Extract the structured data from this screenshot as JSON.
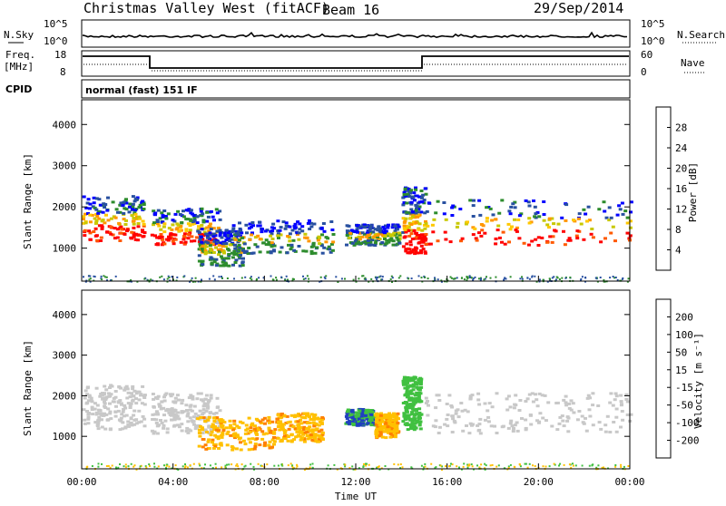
{
  "header": {
    "title": "Christmas Valley West (fitACF)",
    "beam": "Beam 16",
    "date": "29/Sep/2014"
  },
  "strip_nsky": {
    "left_label": "N.Sky",
    "right_label": "N.Search",
    "left_ticks": [
      "10^5",
      "10^0"
    ],
    "right_ticks": [
      "10^5",
      "10^0"
    ]
  },
  "strip_freq": {
    "left_label_1": "Freq.",
    "left_label_2": "[MHz]",
    "left_ticks": [
      "18",
      "8"
    ],
    "right_label": "Nave",
    "right_ticks": [
      "60",
      "0"
    ]
  },
  "cpid": {
    "label": "CPID",
    "mode_text": "normal (fast) 151 IF"
  },
  "power_colorbar": {
    "label": "Power [dB]",
    "ticks": [
      "28",
      "24",
      "20",
      "16",
      "12",
      "8",
      "4"
    ],
    "colors": [
      "#ff0000",
      "#ff5a00",
      "#ff9600",
      "#ffc800",
      "#c8c800",
      "#2d8c2d",
      "#2850a0",
      "#0000ff"
    ]
  },
  "velocity_colorbar": {
    "label": "Velocity [m s⁻¹]",
    "ticks": [
      "200",
      "100",
      "50",
      "15",
      "-15",
      "-50",
      "-100",
      "-200"
    ],
    "colors": [
      "#2040c0",
      "#207020",
      "#40c040",
      "#a0d060",
      "#c8c8c8",
      "#ffc000",
      "#ff8000",
      "#ff4000",
      "#ff0000"
    ]
  },
  "chart_data": [
    {
      "type": "heatmap",
      "name": "power",
      "xlabel": "",
      "ylabel": "Slant Range [km]",
      "ylim": [
        200,
        4600
      ],
      "xlim": [
        "00:00",
        "24:00"
      ],
      "yticks": [
        "4000",
        "3000",
        "2000",
        "1000"
      ],
      "ytick_values": [
        4000,
        3000,
        2000,
        1000
      ],
      "regions": [
        {
          "t": [
            0.0,
            2.7
          ],
          "r": [
            1200,
            2300
          ],
          "level": "strong"
        },
        {
          "t": [
            3.0,
            6.0
          ],
          "r": [
            1100,
            2000
          ],
          "level": "strong"
        },
        {
          "t": [
            5.0,
            7.0
          ],
          "r": [
            600,
            1500
          ],
          "level": "medium"
        },
        {
          "t": [
            6.5,
            11.0
          ],
          "r": [
            900,
            1700
          ],
          "level": "medium"
        },
        {
          "t": [
            11.5,
            14.0
          ],
          "r": [
            1100,
            1600
          ],
          "level": "medium"
        },
        {
          "t": [
            14.0,
            15.0
          ],
          "r": [
            900,
            2500
          ],
          "level": "strong"
        },
        {
          "t": [
            15.0,
            24.0
          ],
          "r": [
            1100,
            2200
          ],
          "level": "strong"
        }
      ]
    },
    {
      "type": "heatmap",
      "name": "velocity",
      "xlabel": "Time UT",
      "ylabel": "Slant Range [km]",
      "ylim": [
        200,
        4600
      ],
      "xlim": [
        "00:00",
        "24:00"
      ],
      "xticks": [
        "00:00",
        "04:00",
        "08:00",
        "12:00",
        "16:00",
        "20:00",
        "00:00"
      ],
      "yticks": [
        "4000",
        "3000",
        "2000",
        "1000"
      ],
      "ytick_values": [
        4000,
        3000,
        2000,
        1000
      ],
      "regions": [
        {
          "t": [
            0.0,
            2.7
          ],
          "r": [
            1200,
            2300
          ],
          "v": "ground"
        },
        {
          "t": [
            3.0,
            6.0
          ],
          "r": [
            1100,
            2100
          ],
          "v": "ground"
        },
        {
          "t": [
            5.0,
            8.5
          ],
          "r": [
            700,
            1500
          ],
          "v": "-50"
        },
        {
          "t": [
            8.5,
            10.5
          ],
          "r": [
            900,
            1600
          ],
          "v": "-50"
        },
        {
          "t": [
            11.5,
            12.8
          ],
          "r": [
            1300,
            1700
          ],
          "v": "200"
        },
        {
          "t": [
            12.8,
            13.8
          ],
          "r": [
            1000,
            1600
          ],
          "v": "-50"
        },
        {
          "t": [
            14.0,
            14.8
          ],
          "r": [
            1200,
            2500
          ],
          "v": "50"
        },
        {
          "t": [
            15.0,
            24.0
          ],
          "r": [
            1100,
            2100
          ],
          "v": "ground"
        }
      ]
    }
  ]
}
